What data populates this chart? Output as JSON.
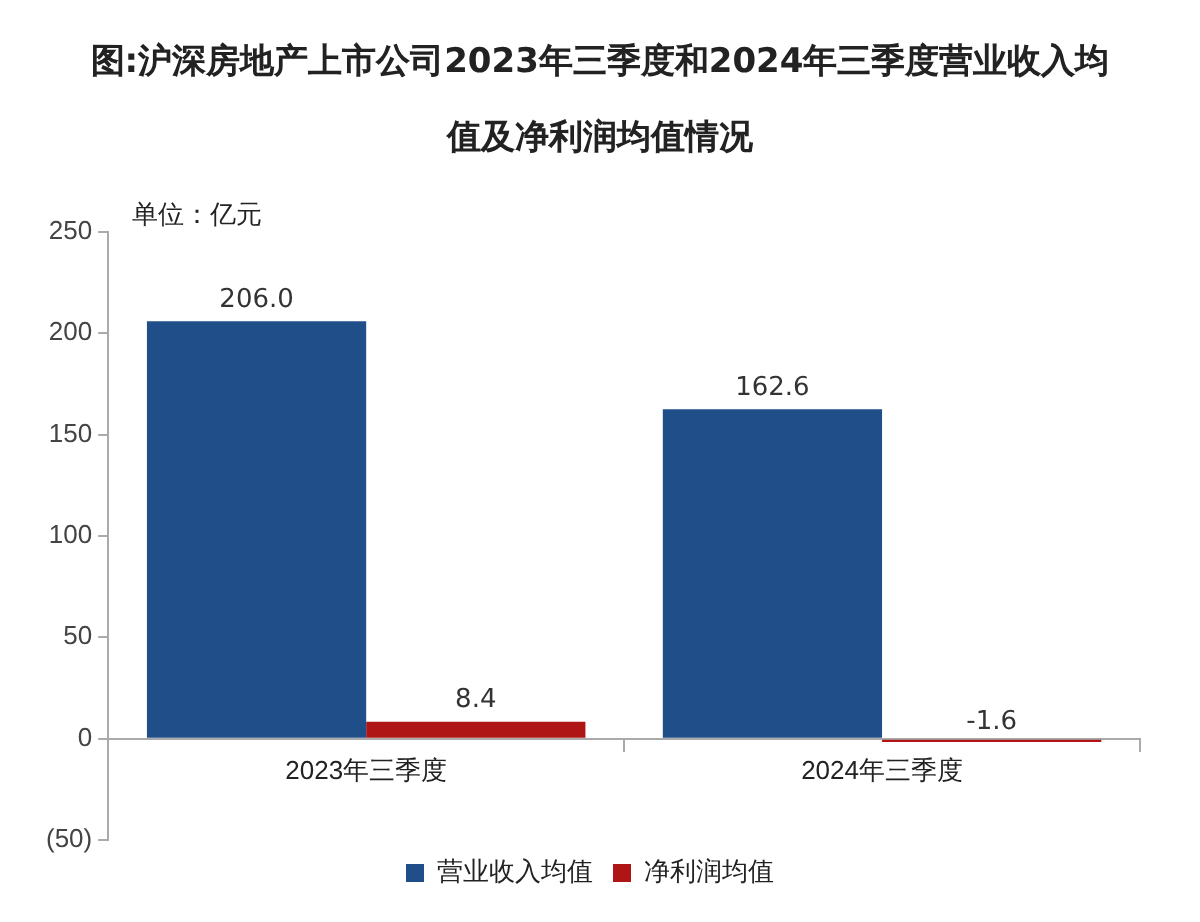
{
  "chart_data": {
    "type": "bar",
    "title": "图:沪深房地产上市公司2023年三季度和2024年三季度营业收入均值及净利润均值情况",
    "categories": [
      "2023年三季度",
      "2024年三季度"
    ],
    "series": [
      {
        "name": "营业收入均值",
        "color": "#1f4e89",
        "values": [
          206.0,
          162.6
        ],
        "value_labels": [
          "206.0",
          "162.6"
        ]
      },
      {
        "name": "净利润均值",
        "color": "#b01515",
        "values": [
          8.4,
          -1.6
        ],
        "value_labels": [
          "8.4",
          "-1.6"
        ]
      }
    ],
    "ylim": [
      -50,
      250
    ],
    "yticks": [
      {
        "value": -50,
        "label": "(50)"
      },
      0,
      50,
      100,
      150,
      200,
      250
    ],
    "annotations": [
      "单位：亿元"
    ],
    "grid": false,
    "legend": "bottom"
  }
}
